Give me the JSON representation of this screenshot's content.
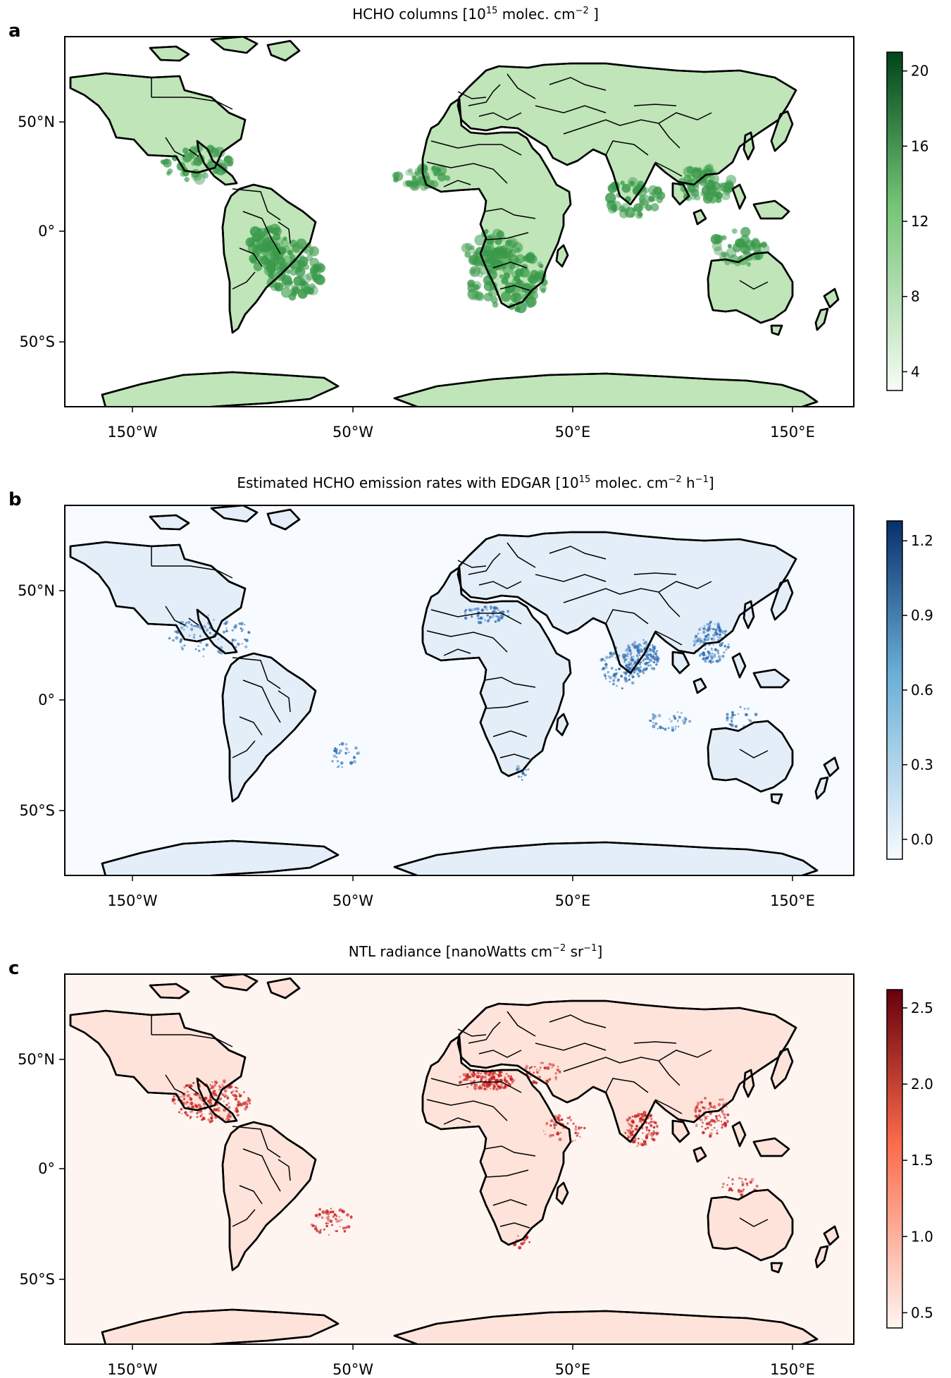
{
  "panels": [
    {
      "key": "a",
      "label": "a",
      "title": "HCHO columns [10^15 molec. cm^-2 ]",
      "title_parts": [
        "HCHO columns [10",
        "15",
        " molec. cm",
        "−2",
        " ]"
      ],
      "colormap": "Greens",
      "colors": {
        "low": "#f7fcf5",
        "mid": "#74c476",
        "high": "#00441b",
        "land_base": "#bfe5b9",
        "land_hot": "#3a9a4a"
      },
      "colorbar": {
        "min": 3.0,
        "max": 21.0,
        "ticks": [
          "4",
          "8",
          "12",
          "16",
          "20"
        ],
        "tick_values": [
          4,
          8,
          12,
          16,
          20
        ]
      },
      "lat_ticks": [
        "50°N",
        "0°",
        "50°S"
      ],
      "lon_ticks": [
        "150°W",
        "50°W",
        "50°E",
        "150°E"
      ]
    },
    {
      "key": "b",
      "label": "b",
      "title": "Estimated HCHO emission rates with EDGAR [10^15 molec. cm^-2 h^-1]",
      "title_parts": [
        "Estimated HCHO emission rates with EDGAR [10",
        "15",
        " molec. cm",
        "−2",
        " h",
        "−1",
        "]"
      ],
      "colormap": "Blues",
      "colors": {
        "low": "#f7fbff",
        "mid": "#6baed6",
        "high": "#08306b",
        "land_base": "#e4eef9",
        "land_hot": "#2f6fb3"
      },
      "colorbar": {
        "min": -0.08,
        "max": 1.28,
        "ticks": [
          "0.0",
          "0.3",
          "0.6",
          "0.9",
          "1.2"
        ],
        "tick_values": [
          0.0,
          0.3,
          0.6,
          0.9,
          1.2
        ]
      },
      "lat_ticks": [
        "50°N",
        "0°",
        "50°S"
      ],
      "lon_ticks": [
        "150°W",
        "50°W",
        "50°E",
        "150°E"
      ]
    },
    {
      "key": "c",
      "label": "c",
      "title": "NTL radiance [nanoWatts cm^-2 sr^-1]",
      "title_parts": [
        "NTL radiance [nanoWatts cm",
        "−2",
        " sr",
        "−1",
        "]"
      ],
      "colormap": "Reds",
      "colors": {
        "low": "#fff5f0",
        "mid": "#fb6a4a",
        "high": "#67000d",
        "land_base": "#fde3da",
        "land_hot": "#c81d1d"
      },
      "colorbar": {
        "min": 0.4,
        "max": 2.62,
        "ticks": [
          "0.5",
          "1.0",
          "1.5",
          "2.0",
          "2.5"
        ],
        "tick_values": [
          0.5,
          1.0,
          1.5,
          2.0,
          2.5
        ]
      },
      "lat_ticks": [
        "50°N",
        "0°",
        "50°S"
      ],
      "lon_ticks": [
        "150°W",
        "50°W",
        "50°E",
        "150°E"
      ]
    }
  ]
}
